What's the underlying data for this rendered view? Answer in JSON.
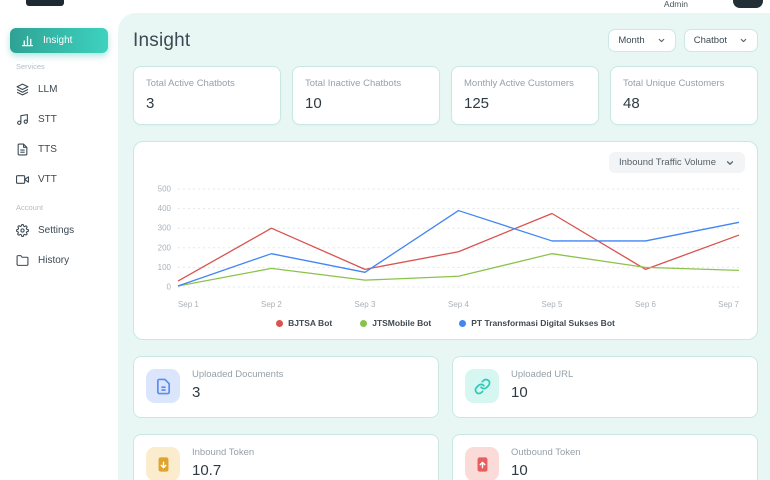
{
  "header": {
    "user": "Admin"
  },
  "sidebar": {
    "sections": {
      "services": "Services",
      "account": "Account"
    },
    "items": [
      {
        "label": "Insight"
      },
      {
        "label": "LLM"
      },
      {
        "label": "STT"
      },
      {
        "label": "TTS"
      },
      {
        "label": "VTT"
      },
      {
        "label": "Settings"
      },
      {
        "label": "History"
      }
    ]
  },
  "page_title": "Insight",
  "filters": {
    "period_label": "Month",
    "scope_label": "Chatbot"
  },
  "stats": [
    {
      "label": "Total Active Chatbots",
      "value": "3"
    },
    {
      "label": "Total Inactive Chatbots",
      "value": "10"
    },
    {
      "label": "Monthly Active Customers",
      "value": "125"
    },
    {
      "label": "Total Unique Customers",
      "value": "48"
    }
  ],
  "chart_panel": {
    "selector_label": "Inbound Traffic Volume"
  },
  "chart_data": {
    "type": "line",
    "title": "Inbound Traffic Volume",
    "categories": [
      "Sep 1",
      "Sep 2",
      "Sep 3",
      "Sep 4",
      "Sep 5",
      "Sep 6",
      "Sep 7"
    ],
    "series": [
      {
        "name": "BJTSA Bot",
        "color": "#d9534f",
        "values": [
          30,
          300,
          90,
          180,
          375,
          90,
          265
        ]
      },
      {
        "name": "JTSMobile Bot",
        "color": "#8bc34a",
        "values": [
          5,
          95,
          35,
          55,
          170,
          100,
          85
        ]
      },
      {
        "name": "PT Transformasi Digital Sukses Bot",
        "color": "#4285f4",
        "values": [
          5,
          170,
          75,
          390,
          235,
          235,
          330
        ]
      }
    ],
    "ylim": [
      0,
      500
    ],
    "ytick": 100,
    "grid": true,
    "legend_position": "bottom",
    "xlabel": "",
    "ylabel": ""
  },
  "resources": [
    {
      "label": "Uploaded Documents",
      "value": "3",
      "accent": "#5b8def",
      "bg": "#dbe6fc"
    },
    {
      "label": "Uploaded URL",
      "value": "10",
      "accent": "#2fc8b9",
      "bg": "#d6f6f1"
    },
    {
      "label": "Inbound Token",
      "value": "10.7",
      "accent": "#dfa32e",
      "bg": "#faeccd"
    },
    {
      "label": "Outbound Token",
      "value": "10",
      "accent": "#e85d5d",
      "bg": "#fadbd8"
    }
  ]
}
